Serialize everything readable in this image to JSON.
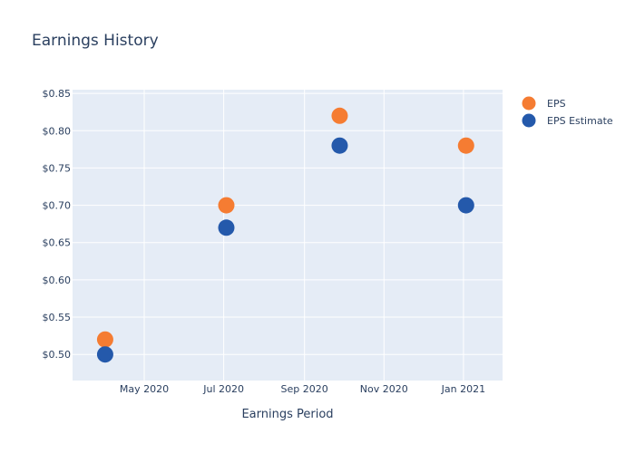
{
  "chart_data": {
    "type": "scatter",
    "title": "Earnings History",
    "xlabel": "Earnings Period",
    "ylabel": "",
    "x_ticks": [
      {
        "date": "2020-05-01",
        "label": "May 2020"
      },
      {
        "date": "2020-07-01",
        "label": "Jul 2020"
      },
      {
        "date": "2020-09-01",
        "label": "Sep 2020"
      },
      {
        "date": "2020-11-01",
        "label": "Nov 2020"
      },
      {
        "date": "2021-01-01",
        "label": "Jan 2021"
      }
    ],
    "y_ticks": [
      {
        "value": 0.5,
        "label": "$0.50"
      },
      {
        "value": 0.55,
        "label": "$0.55"
      },
      {
        "value": 0.6,
        "label": "$0.60"
      },
      {
        "value": 0.65,
        "label": "$0.65"
      },
      {
        "value": 0.7,
        "label": "$0.70"
      },
      {
        "value": 0.75,
        "label": "$0.75"
      },
      {
        "value": 0.8,
        "label": "$0.80"
      },
      {
        "value": 0.85,
        "label": "$0.85"
      }
    ],
    "xlim": [
      "2020-03-07",
      "2021-01-31"
    ],
    "ylim": [
      0.465,
      0.855
    ],
    "grid": true,
    "legend": "top-right",
    "series": [
      {
        "name": "EPS",
        "color": "#f57c32",
        "points": [
          {
            "x": "2020-04-01",
            "y": 0.52
          },
          {
            "x": "2020-07-03",
            "y": 0.7
          },
          {
            "x": "2020-09-28",
            "y": 0.82
          },
          {
            "x": "2021-01-03",
            "y": 0.78
          }
        ]
      },
      {
        "name": "EPS Estimate",
        "color": "#2459ab",
        "points": [
          {
            "x": "2020-04-01",
            "y": 0.5
          },
          {
            "x": "2020-07-03",
            "y": 0.67
          },
          {
            "x": "2020-09-28",
            "y": 0.78
          },
          {
            "x": "2021-01-03",
            "y": 0.7
          }
        ]
      }
    ]
  }
}
